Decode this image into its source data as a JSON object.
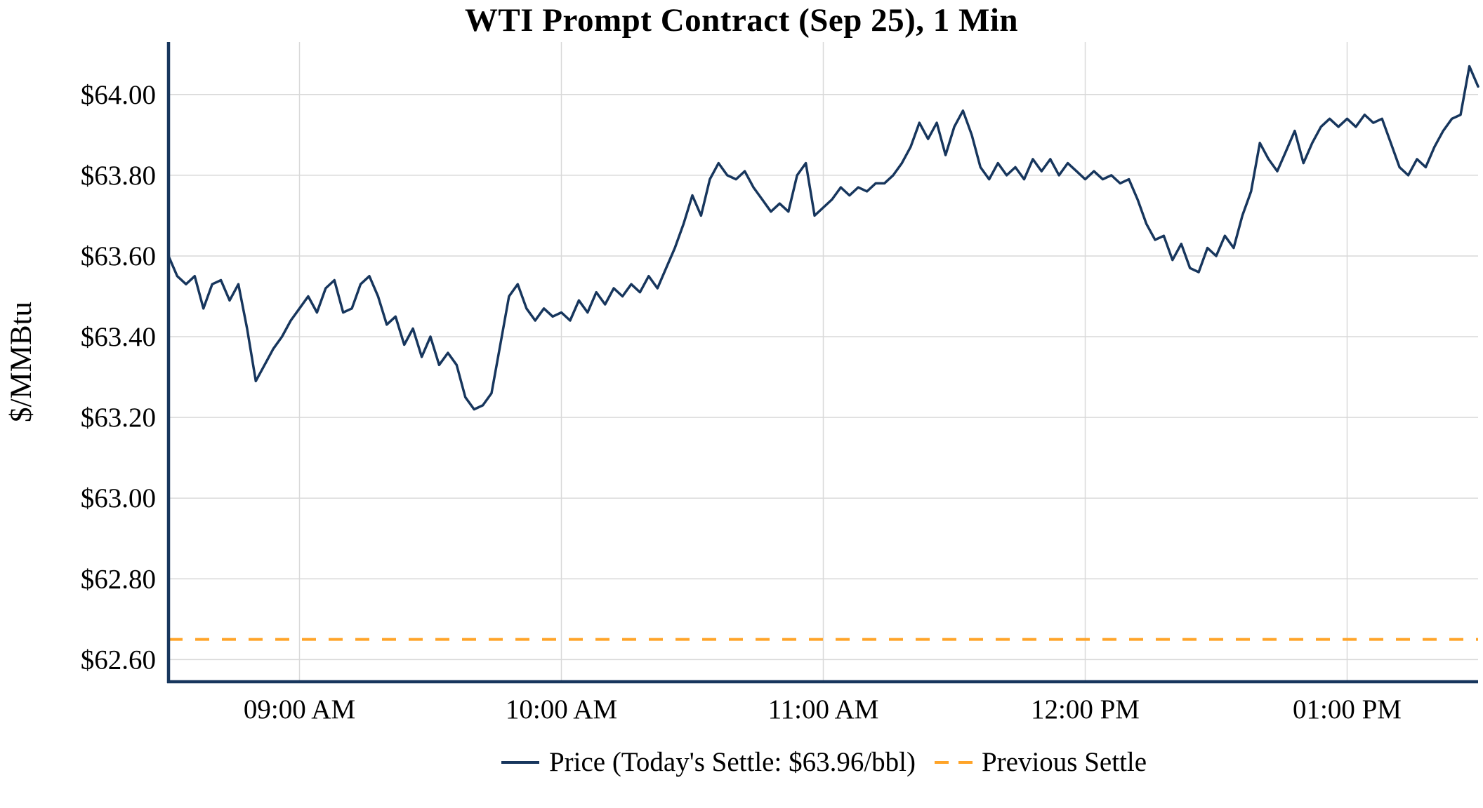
{
  "chart_data": {
    "type": "line",
    "title": "WTI Prompt Contract (Sep 25), 1 Min",
    "xlabel": "",
    "ylabel": "$/MMBtu",
    "x_start": "08:30 AM",
    "x_end": "01:30 PM",
    "interval_minutes": 2,
    "x_ticks": [
      {
        "label": "09:00 AM",
        "minutes_from_start": 30
      },
      {
        "label": "10:00 AM",
        "minutes_from_start": 90
      },
      {
        "label": "11:00 AM",
        "minutes_from_start": 150
      },
      {
        "label": "12:00 PM",
        "minutes_from_start": 210
      },
      {
        "label": "01:00 PM",
        "minutes_from_start": 270
      }
    ],
    "y_ticks": [
      {
        "label": "$62.60",
        "value": 62.6
      },
      {
        "label": "$62.80",
        "value": 62.8
      },
      {
        "label": "$63.00",
        "value": 63.0
      },
      {
        "label": "$63.20",
        "value": 63.2
      },
      {
        "label": "$63.40",
        "value": 63.4
      },
      {
        "label": "$63.60",
        "value": 63.6
      },
      {
        "label": "$63.80",
        "value": 63.8
      },
      {
        "label": "$64.00",
        "value": 64.0
      }
    ],
    "ylim": [
      62.545,
      64.13
    ],
    "grid": true,
    "legend_position": "bottom-center",
    "todays_settle": 63.96,
    "previous_settle": 62.65,
    "colors": {
      "axis": "#17365D",
      "grid": "#D9D9D9",
      "text": "#000000",
      "background": "#FFFFFF"
    },
    "series": [
      {
        "name": "Price (Today's Settle: $63.96/bbl)",
        "type": "line",
        "color": "#17365D",
        "style": "solid",
        "values": [
          63.6,
          63.55,
          63.53,
          63.55,
          63.47,
          63.53,
          63.54,
          63.49,
          63.53,
          63.42,
          63.29,
          63.33,
          63.37,
          63.4,
          63.44,
          63.47,
          63.5,
          63.46,
          63.52,
          63.54,
          63.46,
          63.47,
          63.53,
          63.55,
          63.5,
          63.43,
          63.45,
          63.38,
          63.42,
          63.35,
          63.4,
          63.33,
          63.36,
          63.33,
          63.25,
          63.22,
          63.23,
          63.26,
          63.38,
          63.5,
          63.53,
          63.47,
          63.44,
          63.47,
          63.45,
          63.46,
          63.44,
          63.49,
          63.46,
          63.51,
          63.48,
          63.52,
          63.5,
          63.53,
          63.51,
          63.55,
          63.52,
          63.57,
          63.62,
          63.68,
          63.75,
          63.7,
          63.79,
          63.83,
          63.8,
          63.79,
          63.81,
          63.77,
          63.74,
          63.71,
          63.73,
          63.71,
          63.8,
          63.83,
          63.7,
          63.72,
          63.74,
          63.77,
          63.75,
          63.77,
          63.76,
          63.78,
          63.78,
          63.8,
          63.83,
          63.87,
          63.93,
          63.89,
          63.93,
          63.85,
          63.92,
          63.96,
          63.9,
          63.82,
          63.79,
          63.83,
          63.8,
          63.82,
          63.79,
          63.84,
          63.81,
          63.84,
          63.8,
          63.83,
          63.81,
          63.79,
          63.81,
          63.79,
          63.8,
          63.78,
          63.79,
          63.74,
          63.68,
          63.64,
          63.65,
          63.59,
          63.63,
          63.57,
          63.56,
          63.62,
          63.6,
          63.65,
          63.62,
          63.7,
          63.76,
          63.88,
          63.84,
          63.81,
          63.86,
          63.91,
          63.83,
          63.88,
          63.92,
          63.94,
          63.92,
          63.94,
          63.92,
          63.95,
          63.93,
          63.94,
          63.88,
          63.82,
          63.8,
          63.84,
          63.82,
          63.87,
          63.91,
          63.94,
          63.95,
          64.07,
          64.02
        ]
      },
      {
        "name": "Previous Settle",
        "type": "hline",
        "color": "#FFA428",
        "style": "dashed",
        "value": 62.65
      }
    ]
  }
}
